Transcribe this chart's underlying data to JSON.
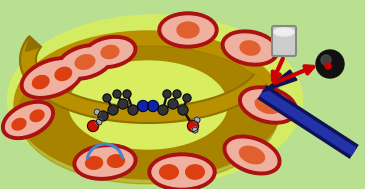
{
  "bg_color": "#b8e090",
  "glow_color": "#d8ee60",
  "ring_color": "#b89000",
  "ring_dark": "#907000",
  "bact_border": "#aa1111",
  "bact_fill": "#f0b0a0",
  "bact_core": "#e06030",
  "bact_core2": "#dd4010",
  "arrow_color": "#b89000",
  "arrow_dark": "#907000",
  "afm_blue": "#111155",
  "afm_red": "#cc0000",
  "afm_cyl_top": "#dddddd",
  "afm_cyl_bot": "#999999",
  "afm_ball": "#222222",
  "blue_arc": "#4488cc",
  "mol_bond": "#222222",
  "mol_C": "#333333",
  "mol_N": "#1122aa",
  "mol_O": "#cc1100",
  "mol_H": "#aaaaaa",
  "figsize": [
    3.65,
    1.89
  ],
  "dpi": 100
}
